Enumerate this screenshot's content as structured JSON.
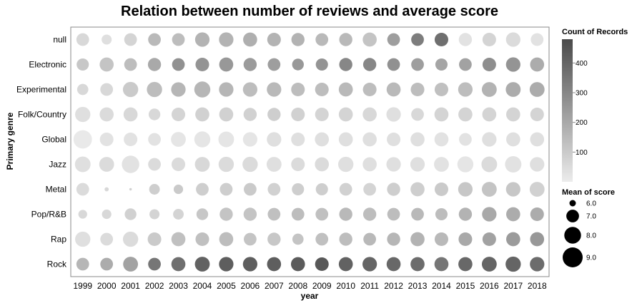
{
  "chart_data": {
    "type": "scatter",
    "title": "Relation between number of reviews and average score",
    "xlabel": "year",
    "ylabel": "Primary genre",
    "x": [
      "1999",
      "2000",
      "2001",
      "2002",
      "2003",
      "2004",
      "2005",
      "2006",
      "2007",
      "2008",
      "2009",
      "2010",
      "2011",
      "2012",
      "2013",
      "2014",
      "2015",
      "2016",
      "2017",
      "2018"
    ],
    "y": [
      "null",
      "Electronic",
      "Experimental",
      "Folk/Country",
      "Global",
      "Jazz",
      "Metal",
      "Pop/R&B",
      "Rap",
      "Rock"
    ],
    "color_field": "Count of Records",
    "size_field": "Mean of score",
    "color_range": [
      0,
      480
    ],
    "color_ticks": [
      "400",
      "300",
      "200",
      "100"
    ],
    "color_tick_values": [
      400,
      300,
      200,
      100
    ],
    "size_ticks": [
      "6.0",
      "7.0",
      "8.0",
      "9.0"
    ],
    "size_tick_values": [
      6.0,
      7.0,
      8.0,
      9.0
    ],
    "color_scale": [
      "#ececec",
      "#4a4a4a"
    ],
    "series": [
      {
        "genre": "null",
        "count": [
          60,
          40,
          70,
          150,
          140,
          170,
          170,
          180,
          170,
          170,
          150,
          150,
          120,
          230,
          330,
          370,
          30,
          70,
          50,
          30
        ],
        "score": [
          7.0,
          6.5,
          7.0,
          7.0,
          7.0,
          7.4,
          7.4,
          7.3,
          7.2,
          7.1,
          7.0,
          7.1,
          7.3,
          7.0,
          7.0,
          7.2,
          7.1,
          7.2,
          7.4,
          7.0
        ]
      },
      {
        "genre": "Electronic",
        "count": [
          110,
          120,
          140,
          200,
          270,
          260,
          250,
          240,
          230,
          250,
          260,
          300,
          300,
          270,
          230,
          210,
          220,
          280,
          260,
          190
        ],
        "score": [
          6.9,
          7.3,
          7.0,
          7.1,
          7.0,
          7.2,
          7.3,
          7.1,
          7.0,
          6.8,
          6.9,
          7.1,
          7.1,
          7.0,
          7.0,
          6.9,
          7.0,
          7.2,
          7.4,
          7.3
        ]
      },
      {
        "genre": "Experimental",
        "count": [
          60,
          60,
          100,
          140,
          160,
          160,
          160,
          140,
          150,
          140,
          140,
          150,
          140,
          150,
          140,
          130,
          140,
          170,
          190,
          190
        ],
        "score": [
          6.7,
          7.0,
          7.6,
          7.6,
          7.4,
          7.8,
          7.4,
          7.4,
          7.4,
          7.2,
          7.2,
          7.3,
          7.2,
          7.3,
          7.2,
          7.2,
          7.4,
          7.5,
          7.5,
          7.5
        ]
      },
      {
        "genre": "Folk/Country",
        "count": [
          40,
          50,
          60,
          60,
          70,
          80,
          80,
          80,
          90,
          80,
          70,
          70,
          60,
          40,
          60,
          70,
          70,
          70,
          70,
          70
        ],
        "score": [
          7.6,
          7.3,
          7.3,
          6.8,
          7.2,
          7.3,
          7.3,
          7.1,
          7.1,
          7.2,
          7.2,
          7.3,
          7.3,
          7.4,
          7.0,
          7.3,
          7.3,
          7.3,
          7.3,
          7.2
        ]
      },
      {
        "genre": "Global",
        "count": [
          10,
          30,
          30,
          30,
          20,
          20,
          20,
          20,
          40,
          40,
          40,
          40,
          40,
          40,
          40,
          30,
          30,
          40,
          40,
          40
        ],
        "score": [
          8.5,
          7.2,
          7.2,
          7.0,
          7.5,
          7.8,
          7.7,
          7.4,
          7.4,
          7.2,
          7.3,
          7.3,
          7.3,
          7.2,
          7.3,
          7.3,
          7.0,
          7.4,
          7.3,
          7.3
        ]
      },
      {
        "genre": "Jazz",
        "count": [
          40,
          50,
          30,
          50,
          50,
          60,
          50,
          50,
          40,
          50,
          50,
          40,
          40,
          40,
          40,
          30,
          20,
          50,
          30,
          40
        ],
        "score": [
          7.7,
          7.5,
          8.2,
          7.0,
          7.2,
          7.5,
          7.6,
          7.6,
          7.5,
          7.2,
          7.3,
          7.6,
          7.3,
          7.4,
          7.4,
          7.5,
          7.8,
          7.7,
          7.9,
          7.4
        ]
      },
      {
        "genre": "Metal",
        "count": [
          50,
          60,
          80,
          90,
          100,
          90,
          90,
          100,
          80,
          90,
          90,
          80,
          70,
          90,
          90,
          100,
          110,
          120,
          110,
          80
        ],
        "score": [
          7.0,
          5.8,
          5.6,
          6.6,
          6.4,
          7.0,
          7.0,
          7.0,
          7.0,
          6.9,
          6.9,
          7.0,
          7.0,
          7.1,
          7.3,
          7.2,
          7.4,
          7.5,
          7.4,
          7.5
        ]
      },
      {
        "genre": "Pop/R&B",
        "count": [
          60,
          60,
          80,
          70,
          70,
          110,
          120,
          120,
          130,
          140,
          130,
          150,
          140,
          140,
          150,
          140,
          170,
          200,
          190,
          190
        ],
        "score": [
          6.3,
          6.4,
          6.8,
          6.5,
          6.6,
          6.8,
          7.1,
          7.1,
          7.0,
          7.0,
          7.0,
          7.1,
          7.1,
          7.0,
          7.0,
          6.9,
          7.1,
          7.4,
          7.3,
          7.2
        ]
      },
      {
        "genre": "Rap",
        "count": [
          40,
          50,
          50,
          100,
          130,
          130,
          140,
          120,
          110,
          120,
          130,
          140,
          150,
          160,
          170,
          150,
          200,
          220,
          240,
          250
        ],
        "score": [
          7.6,
          7.0,
          7.6,
          7.2,
          7.3,
          7.2,
          7.3,
          7.0,
          7.1,
          6.7,
          7.0,
          7.1,
          7.0,
          7.1,
          7.3,
          7.2,
          7.2,
          7.2,
          7.3,
          7.3
        ]
      },
      {
        "genre": "Rock",
        "count": [
          160,
          190,
          220,
          350,
          370,
          410,
          420,
          420,
          420,
          430,
          440,
          410,
          400,
          390,
          380,
          350,
          390,
          400,
          400,
          380
        ],
        "score": [
          7.0,
          7.0,
          7.5,
          7.0,
          7.3,
          7.5,
          7.4,
          7.4,
          7.3,
          7.3,
          7.2,
          7.3,
          7.4,
          7.3,
          7.3,
          7.3,
          7.3,
          7.5,
          7.6,
          7.4
        ]
      }
    ]
  }
}
